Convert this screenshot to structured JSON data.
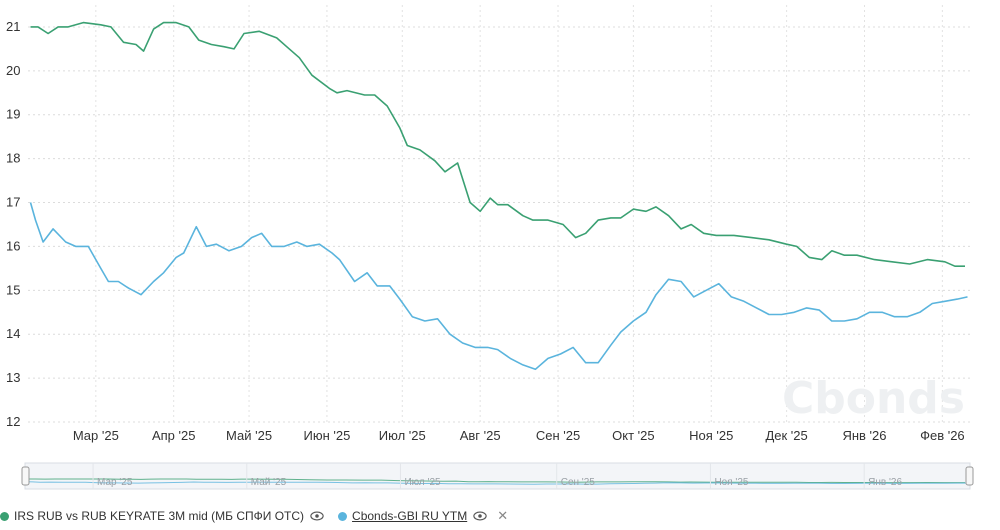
{
  "chart_data": {
    "type": "line",
    "ylim": [
      12,
      21.5
    ],
    "y_ticks": [
      "12",
      "13",
      "14",
      "15",
      "16",
      "17",
      "18",
      "19",
      "20",
      "21"
    ],
    "x_ticks": [
      "Мар '25",
      "Апр '25",
      "Май '25",
      "Июн '25",
      "Июл '25",
      "Авг '25",
      "Сен '25",
      "Окт '25",
      "Ноя '25",
      "Дек '25",
      "Янв '26",
      "Фев '26"
    ],
    "navigator_ticks": [
      "Мар '25",
      "Май '25",
      "Июл '25",
      "Сен '25",
      "Ноя '25",
      "Янв '26"
    ],
    "grid": true,
    "legend_position": "bottom-left",
    "watermark": "Cbonds",
    "series": [
      {
        "name": "IRS RUB vs RUB KEYRATE 3M mid (МБ СПФИ OTC)",
        "color": "#3aa072",
        "x": [
          "2025-02-03",
          "2025-02-06",
          "2025-02-10",
          "2025-02-14",
          "2025-02-18",
          "2025-02-24",
          "2025-03-03",
          "2025-03-07",
          "2025-03-12",
          "2025-03-17",
          "2025-03-20",
          "2025-03-24",
          "2025-03-28",
          "2025-04-02",
          "2025-04-07",
          "2025-04-11",
          "2025-04-16",
          "2025-04-21",
          "2025-04-25",
          "2025-04-29",
          "2025-05-05",
          "2025-05-12",
          "2025-05-16",
          "2025-05-21",
          "2025-05-26",
          "2025-06-02",
          "2025-06-05",
          "2025-06-09",
          "2025-06-16",
          "2025-06-20",
          "2025-06-25",
          "2025-06-30",
          "2025-07-03",
          "2025-07-08",
          "2025-07-14",
          "2025-07-18",
          "2025-07-23",
          "2025-07-28",
          "2025-08-01",
          "2025-08-05",
          "2025-08-08",
          "2025-08-12",
          "2025-08-18",
          "2025-08-22",
          "2025-08-28",
          "2025-09-03",
          "2025-09-08",
          "2025-09-12",
          "2025-09-17",
          "2025-09-22",
          "2025-09-26",
          "2025-10-01",
          "2025-10-06",
          "2025-10-10",
          "2025-10-15",
          "2025-10-20",
          "2025-10-24",
          "2025-10-29",
          "2025-11-03",
          "2025-11-10",
          "2025-11-17",
          "2025-11-24",
          "2025-12-01",
          "2025-12-05",
          "2025-12-10",
          "2025-12-15",
          "2025-12-19",
          "2025-12-24",
          "2025-12-29",
          "2026-01-05",
          "2026-01-12",
          "2026-01-19",
          "2026-01-26",
          "2026-02-02",
          "2026-02-06",
          "2026-02-10"
        ],
        "values": [
          21.0,
          21.0,
          20.85,
          21.0,
          21.0,
          21.1,
          21.05,
          21.0,
          20.65,
          20.6,
          20.45,
          20.95,
          21.1,
          21.1,
          21.0,
          20.7,
          20.6,
          20.55,
          20.5,
          20.85,
          20.9,
          20.75,
          20.55,
          20.3,
          19.9,
          19.6,
          19.5,
          19.55,
          19.45,
          19.45,
          19.2,
          18.7,
          18.3,
          18.2,
          17.95,
          17.7,
          17.9,
          17.0,
          16.8,
          17.1,
          16.95,
          16.95,
          16.7,
          16.6,
          16.6,
          16.5,
          16.2,
          16.3,
          16.6,
          16.65,
          16.65,
          16.85,
          16.8,
          16.9,
          16.7,
          16.4,
          16.5,
          16.3,
          16.25,
          16.25,
          16.2,
          16.15,
          16.05,
          16.0,
          15.75,
          15.7,
          15.9,
          15.8,
          15.8,
          15.7,
          15.65,
          15.6,
          15.7,
          15.65,
          15.55,
          15.55
        ]
      },
      {
        "name": "Cbonds-GBI RU YTM",
        "color": "#5ab4dd",
        "x": [
          "2025-02-03",
          "2025-02-05",
          "2025-02-08",
          "2025-02-12",
          "2025-02-17",
          "2025-02-21",
          "2025-02-26",
          "2025-03-03",
          "2025-03-06",
          "2025-03-10",
          "2025-03-14",
          "2025-03-19",
          "2025-03-24",
          "2025-03-28",
          "2025-04-02",
          "2025-04-05",
          "2025-04-10",
          "2025-04-14",
          "2025-04-18",
          "2025-04-23",
          "2025-04-28",
          "2025-05-02",
          "2025-05-06",
          "2025-05-10",
          "2025-05-15",
          "2025-05-20",
          "2025-05-24",
          "2025-05-29",
          "2025-06-03",
          "2025-06-06",
          "2025-06-12",
          "2025-06-17",
          "2025-06-21",
          "2025-06-26",
          "2025-06-30",
          "2025-07-05",
          "2025-07-10",
          "2025-07-15",
          "2025-07-20",
          "2025-07-25",
          "2025-07-30",
          "2025-08-04",
          "2025-08-08",
          "2025-08-13",
          "2025-08-18",
          "2025-08-23",
          "2025-08-28",
          "2025-09-02",
          "2025-09-07",
          "2025-09-12",
          "2025-09-17",
          "2025-09-22",
          "2025-09-26",
          "2025-10-01",
          "2025-10-06",
          "2025-10-10",
          "2025-10-15",
          "2025-10-20",
          "2025-10-25",
          "2025-10-30",
          "2025-11-04",
          "2025-11-09",
          "2025-11-14",
          "2025-11-19",
          "2025-11-24",
          "2025-11-29",
          "2025-12-04",
          "2025-12-09",
          "2025-12-14",
          "2025-12-19",
          "2025-12-24",
          "2025-12-29",
          "2026-01-03",
          "2026-01-08",
          "2026-01-13",
          "2026-01-18",
          "2026-01-23",
          "2026-01-28",
          "2026-02-02",
          "2026-02-07",
          "2026-02-11"
        ],
        "values": [
          17.0,
          16.6,
          16.1,
          16.4,
          16.1,
          16.0,
          16.0,
          15.5,
          15.2,
          15.2,
          15.05,
          14.9,
          15.2,
          15.4,
          15.75,
          15.85,
          16.45,
          16.0,
          16.05,
          15.9,
          16.0,
          16.2,
          16.3,
          16.0,
          16.0,
          16.1,
          16.0,
          16.05,
          15.85,
          15.7,
          15.2,
          15.4,
          15.1,
          15.1,
          14.8,
          14.4,
          14.3,
          14.35,
          14.0,
          13.8,
          13.7,
          13.7,
          13.65,
          13.45,
          13.3,
          13.2,
          13.45,
          13.55,
          13.7,
          13.35,
          13.35,
          13.75,
          14.05,
          14.3,
          14.5,
          14.9,
          15.25,
          15.2,
          14.85,
          15.0,
          15.15,
          14.85,
          14.75,
          14.6,
          14.45,
          14.45,
          14.5,
          14.6,
          14.55,
          14.3,
          14.3,
          14.35,
          14.5,
          14.5,
          14.4,
          14.4,
          14.5,
          14.7,
          14.75,
          14.8,
          14.85
        ]
      }
    ]
  },
  "legend": {
    "items": [
      {
        "label": "IRS RUB vs RUB KEYRATE 3M mid (МБ СПФИ OTC)",
        "color": "#3aa072"
      },
      {
        "label": "Cbonds-GBI RU YTM",
        "color": "#5ab4dd"
      }
    ],
    "close_symbol": "✕"
  }
}
